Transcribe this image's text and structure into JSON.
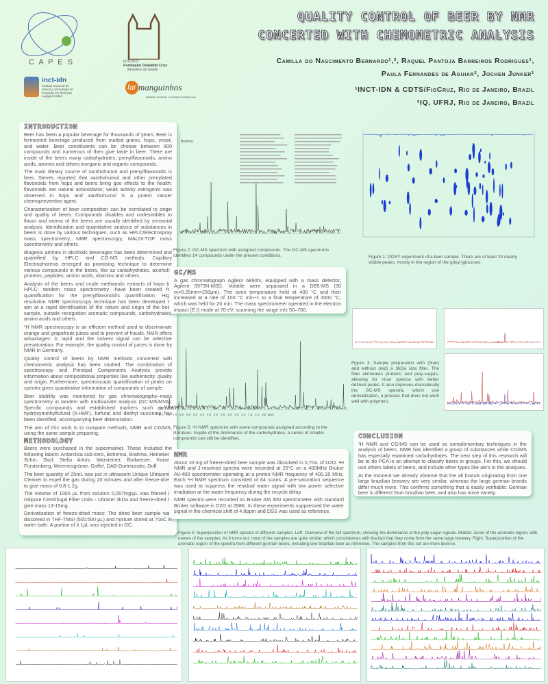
{
  "header": {
    "title_line1": "QUALITY CONTROL OF BEER BY NMR",
    "title_line2": "CONCERTED WITH CHEMOMETRIC ANALYSIS",
    "authors_line1": "Camilla do Nascimento Bernardo¹,², Raquel Pantoja Barreiros Rodrigues¹,",
    "authors_line2": "Paula Fernandes de Aguiar², Jochen Junker¹",
    "affil1": "¹INCT-IDN & CDTS/FioCruz, Rio de Janeiro, Brazil",
    "affil2": "²IQ, UFRJ, Rio de Janeiro, Brazil"
  },
  "logos": {
    "capes": "C A P E S",
    "fiocruz_1": "FIOCRUZ",
    "fiocruz_2": "Fundação Oswaldo Cruz",
    "fiocruz_3": "Ministério da Saúde",
    "inct_name": "inct-idn",
    "inct_sub": "instituto nacional de ciência e tecnologia de inovação em doenças negligenciadas",
    "far": "far",
    "manguinhos": "manguinhos",
    "far_sub": "Ministério da Saúde • Fundação Oswaldo Cruz"
  },
  "intro": {
    "heading": "INTRODUCTION",
    "paragraphs": [
      "Beer has been a popular beverage for thousands of years. Beer is fermented beverage produced from malted grains, hops, yeast, and water. Beer constituents can be choose between 800 compounds and numerous of then give taste in beer. There are inside of the beers many carbohydrates, prenylflavonoids, amino acids, amines and others inorganic and organic compounds.",
      "The main dietary source of xanthohumol and prenylflavonoids is beer. Steves reported that xanthohumol and other prenylated flavonoids from hops and beers bring goo effects to the health: flavonoids are natural antioxidants; weak activity estrogenic was observed in hops and xanthohumol is a potent cancer chemopreventive agent.",
      "Characterization of beer composition can be correlated to origin and quality of beers. Compounds disables and undesirables to flavor and aroma of the beers are usually identified by sensorial analysis. Identification and quantitative analysis of substances in beers is done by various techniques, such as HPLC/Electrospray mass spectrometry, NMR spectroscopy, MALDI-TOF mass spectrometry and others.",
      "Biogenic amines in alcoholic beverages has been determined and quantified by HPLC and CG-MS methods. Capillary Electrophoresis emerged as promising technique to determine various compounds in the beers, like as carbohydrates, alcohols, proteins, peptides, amino acids, vitamins and others.",
      "Analysis of the beers and crude methanolic extracts of hops by HPLC- tandem mass spectrometry -have been created for quantification for the prenylflavonoid's quantification. High resolution NMR spectroscopy technique has been developed to aim at a rapid identification of the nature and origin of the beer sample, outside recognition aromatic compounds, carbohydrates, amino acids and others.",
      "¹H NMR spectroscopy is an efficient method used to discriminate orange and grapefruits juices and to prevent of frauds. NMR offers advantages: is rapid and the solvent signal can be selective presaturation. For example, the quality control of juices is done by NMR in Germany.",
      "Quality control of beers by NMR methods concerted with chemometric analysis has been studied. The combination of spectroscopy and Principal Components Analysis provide information about compositional properties like authenticity, quality and origin. Furthermore, spectroscopic quantification of peaks on spectra gives quantitative information of compounds of sample.",
      "Beer stability was monitored by gas chromatography–mass spectrometry in tandem with multivariate analysis (GC-MS/MVA). Specific compounds and established markers such as 5-hydroxymethylfufural (5-HMF), furfural and diethyl succinate has been identified, accompanying beer deterioration.",
      "The aim of this work is to compare methods, NMR and CG/MS, using the same sample preparing."
    ]
  },
  "methodology": {
    "heading": "METHODOLOGY",
    "paragraphs": [
      "Beers were purchased in the supermarket. These included the following labels: Antarctica sub-zero, Bohemia, Brahma, Heineken, Schin, Skol, Stella Artois, Warsteiner, Budweiser, Kaiser, Fürstenberg, Weernesgrüner, Goffel, DAB-Dortmunder, Duff.",
      "The beer quantity of 25mL was put in ultrassom Unique Ultrasonic Cleaner to expel the gas during 20 minutes and after freeze-dried to give mass of 0,8-1,2g.",
      "The volume of 1000 μL from solution 0,067mg/μL was filtered in milipore Centrifugal Filter Units - Ultracel 3kDa and freeze-dried to give mass 13-15mg.",
      "Derivatization of freeze-dried mass: The dried beer sample was dissolved in THF-TMSI (500:500 μL) and mixture stirred at 70oC in water bath. A portion of it 1μL was injected in GC."
    ]
  },
  "gcms": {
    "heading": "GC/MS",
    "text": "A gas chromatograph Agilent 6890N, equipped with a mass detector, Agilent 5973N-MSD. Volatile were separated in a DB5-MS (30 m×0.25mm×250μm). The oven temperature held at 400 °C and then increased at a rate of 100 °C min−1 to a final temperature of 3000 °C, which was held for 20 min. The mass spectrometer operated in the electron impact (E.I) mode at 70 eV, scanning the range m/z 50–700."
  },
  "nmr": {
    "heading": "NMR",
    "paragraphs": [
      "About 10 mg of freeze-dried beer sample was dissolved in 0,7mL of D2O. ¹H NMR and J-resolved spectra were recorded at 25°C on a 400MHz Bruker AV-400 spectrometer operating at a proton NMR frequency of 400.15 MHz. Each ¹H NMR spectrum consisted of 64 scans. A pre-saturation sequence was used to suppress the residual water signal with low power selective irradiation at the water frequency during the recycle delay.",
      "NMR spectra were recorded on Bruker AM 400 spectrometer with standard Bruker software in D2O at 298K. In these experiments suppressed the water signal in the chemical shift of 4.8ppm and DSS was used as reference."
    ]
  },
  "conclusion": {
    "heading": "CONCLUSION",
    "paragraphs": [
      "¹H NMR and CG/MS can be used as complementary techniques in the analysis of beers. NMR has identified a group of substances while CG/MS has especially examined carbohydrates. The next step of this research will be to do PCA in an attempt to classify beers in groups. For this, we should use others labels of beers, and include other types like ale's in the analyses.",
      "At the moment we already observe that the all brands originating from one large brazilian brewery are very similar, whereas the large german brands differ much more. This confirms something that is easily verifiable: German beer is different from brazilian beer, and also has more variety."
    ]
  },
  "figures": {
    "fig1": "Figure 1: DOSY experiment of a beer sample. There are at least 20 clearly visible peaks, mostly in the region of the (ploy-)glucoses.",
    "fig2": "Figure 2: GC-MS spectrum with assigned compounds. The GC-MS spectrums identifies 14 compounds under the present conditions.",
    "fig3": "Figure 3: Sample preparation with (blue) and without (red) a 3kDa size filter. The filter eliminates proteins and poly-sugars, allowing for nicer spectra with better defined peaks. It also improves dramatically the GC-MS spectra, which use derivatization, a process that does not work well with polymers.",
    "fig4": "Figure 4: Superposition of NMR spectra of different samples. Left: Overview of the full spectrum, showing the dominance of the poly-sugar signals. Middle: Zoom of the aromatic region, with names of the samples. As it turns out, most of the samples are quite similar, which coincidences with tha fact that they come from the same large brewery. Right: Superposition of the aromatic region of the spectra from different german beers, including one brazilian beer as reference. The samples from this set are more diverse.",
    "fig5": "Figure 5: ¹H NMR spectrum with some compounds assigned according to the literature. Inspite of the dominance of the carbohydrates, a series of smaller compounds can still be identified.",
    "fig5_axis": "8.0   7.5   7.0   6.5   6.0   5.5   5.0   4.5   4.0   3.5   3.0   2.5   2.0   1.5   1.0   0.5  ppm",
    "fig2_label": "Brahma"
  },
  "colors": {
    "background": "#dff7e6",
    "box": "#fbfdfb",
    "shadow": "#3c8c64",
    "dosy": "#1a3fcf",
    "filter_blue": "#3050c0",
    "nofilter_red": "#c03030"
  }
}
